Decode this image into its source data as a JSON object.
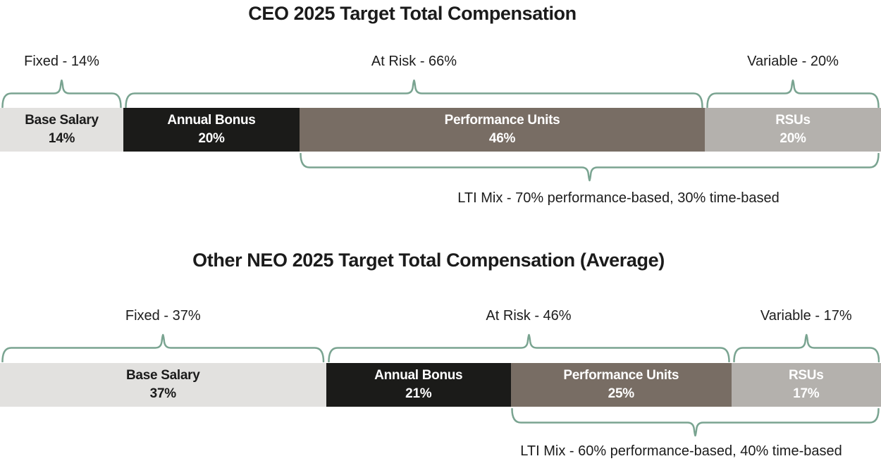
{
  "palette": {
    "brace_green": "#7aa491",
    "label_text": "#1c1c1c"
  },
  "chart_data": [
    {
      "type": "bar",
      "subtype": "stacked-horizontal-100pct",
      "title": "CEO 2025 Target Total Compensation",
      "segments": [
        {
          "label": "Base Salary",
          "value": 14,
          "value_label": "14%",
          "bg": "#e2e1df",
          "fg": "#1b1b1b"
        },
        {
          "label": "Annual Bonus",
          "value": 20,
          "value_label": "20%",
          "bg": "#1b1b19",
          "fg": "#ffffff"
        },
        {
          "label": "Performance Units",
          "value": 46,
          "value_label": "46%",
          "bg": "#786d64",
          "fg": "#ffffff"
        },
        {
          "label": "RSUs",
          "value": 20,
          "value_label": "20%",
          "bg": "#b4b1ad",
          "fg": "#ffffff"
        }
      ],
      "groups": [
        {
          "label": "Fixed - 14%",
          "from": 0,
          "to": 1
        },
        {
          "label": "At Risk - 66%",
          "from": 1,
          "to": 3
        },
        {
          "label": "Variable - 20%",
          "from": 3,
          "to": 4
        }
      ],
      "lti": {
        "label": "LTI Mix - 70% performance-based, 30% time-based",
        "from": 2,
        "to": 4
      }
    },
    {
      "type": "bar",
      "subtype": "stacked-horizontal-100pct",
      "title": "Other NEO 2025 Target Total Compensation (Average)",
      "segments": [
        {
          "label": "Base Salary",
          "value": 37,
          "value_label": "37%",
          "bg": "#e2e1df",
          "fg": "#1b1b1b"
        },
        {
          "label": "Annual Bonus",
          "value": 21,
          "value_label": "21%",
          "bg": "#1b1b19",
          "fg": "#ffffff"
        },
        {
          "label": "Performance Units",
          "value": 25,
          "value_label": "25%",
          "bg": "#786d64",
          "fg": "#ffffff"
        },
        {
          "label": "RSUs",
          "value": 17,
          "value_label": "17%",
          "bg": "#b4b1ad",
          "fg": "#ffffff"
        }
      ],
      "groups": [
        {
          "label": "Fixed - 37%",
          "from": 0,
          "to": 1
        },
        {
          "label": "At Risk - 46%",
          "from": 1,
          "to": 3
        },
        {
          "label": "Variable - 17%",
          "from": 3,
          "to": 4
        }
      ],
      "lti": {
        "label": "LTI Mix - 60% performance-based, 40% time-based",
        "from": 2,
        "to": 4
      }
    }
  ]
}
